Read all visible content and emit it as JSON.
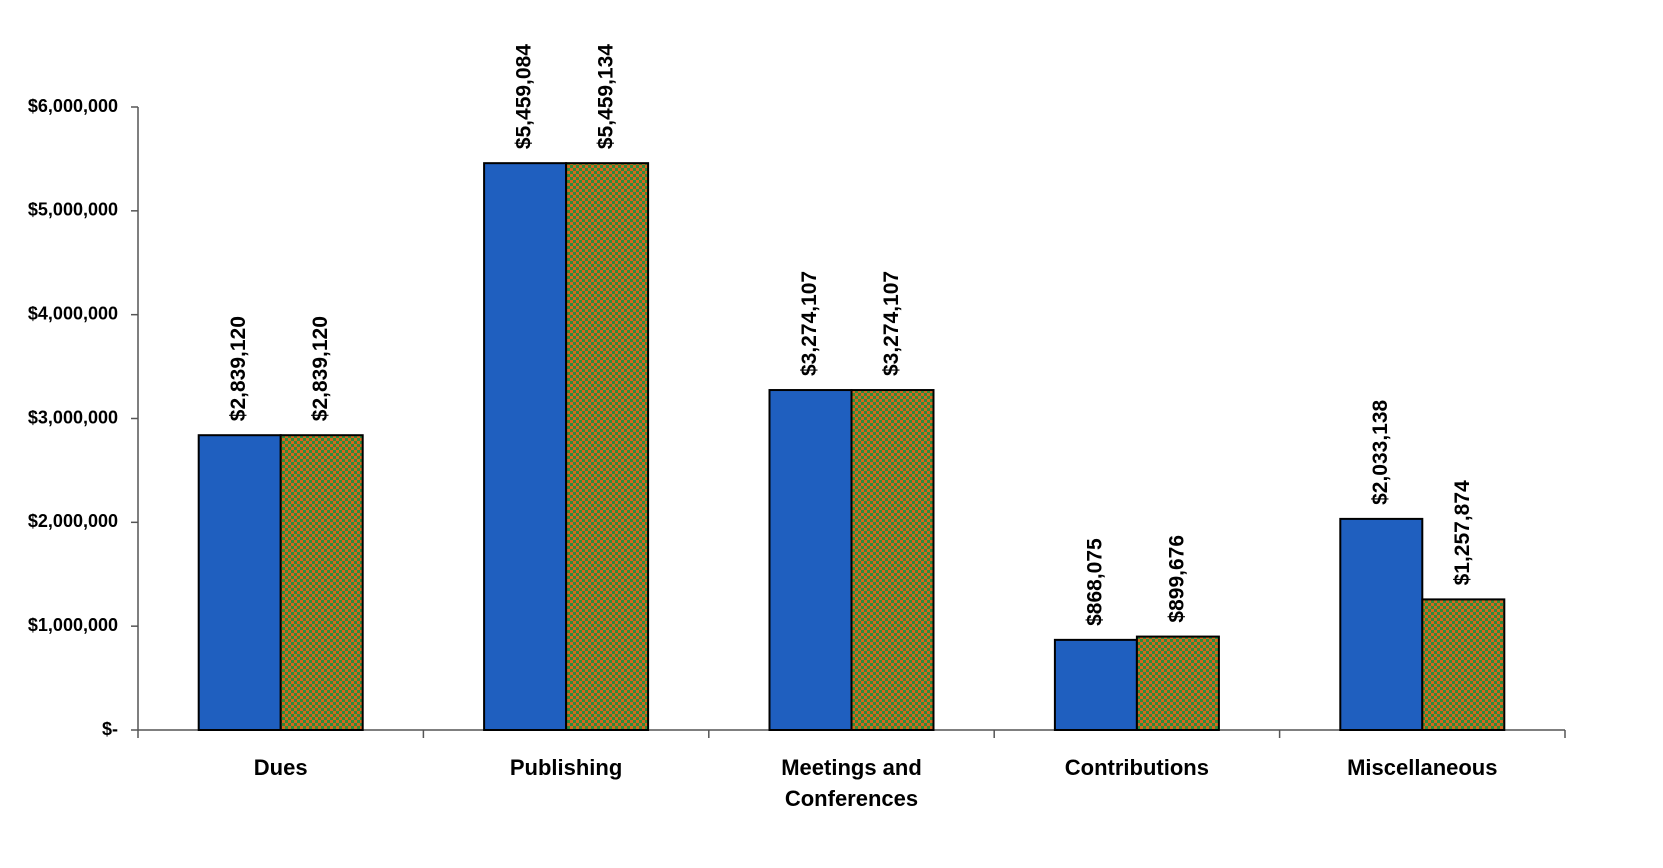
{
  "chart_data": {
    "type": "bar",
    "categories": [
      "Dues",
      "Publishing",
      "Meetings and Conferences",
      "Contributions",
      "Miscellaneous"
    ],
    "series": [
      {
        "color": "#1f5fbf",
        "values": [
          2839120,
          5459084,
          3274107,
          868075,
          2033138
        ],
        "value_labels": [
          "$2,839,120",
          "$5,459,084",
          "$3,274,107",
          "$868,075",
          "$2,033,138"
        ]
      },
      {
        "color": "#2e8b3a",
        "pattern": "checker",
        "pattern_color": "#d2691e",
        "values": [
          2839120,
          5459134,
          3274107,
          899676,
          1257874
        ],
        "value_labels": [
          "$2,839,120",
          "$5,459,134",
          "$3,274,107",
          "$899,676",
          "$1,257,874"
        ]
      }
    ],
    "ylim": [
      0,
      6000000
    ],
    "yticks": [
      {
        "value": 0,
        "label": "$-"
      },
      {
        "value": 1000000,
        "label": "$1,000,000"
      },
      {
        "value": 2000000,
        "label": "$2,000,000"
      },
      {
        "value": 3000000,
        "label": "$3,000,000"
      },
      {
        "value": 4000000,
        "label": "$4,000,000"
      },
      {
        "value": 5000000,
        "label": "$5,000,000"
      },
      {
        "value": 6000000,
        "label": "$6,000,000"
      }
    ],
    "grid": false
  }
}
